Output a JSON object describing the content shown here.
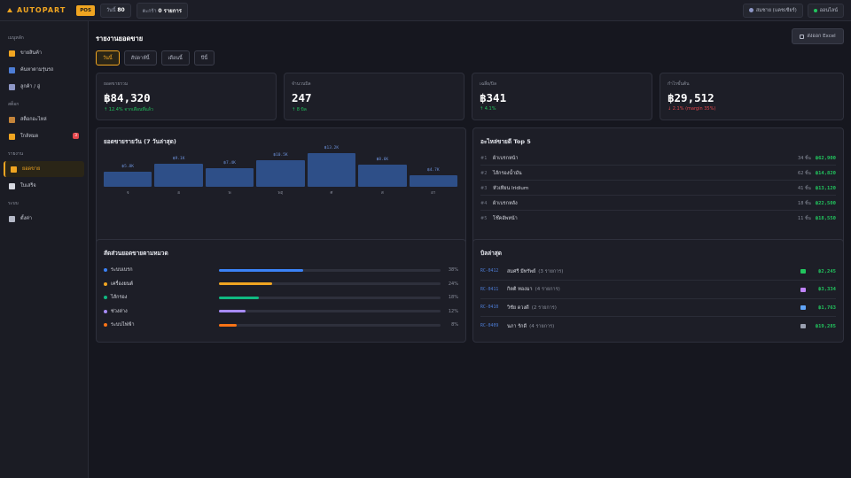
{
  "topbar": {
    "brand": "AUTOPART",
    "pos_badge": "POS",
    "date_chip_label": "วันนี้",
    "date_chip_value": "80",
    "cart_label": "ตะกร้า",
    "cart_value": "0 รายการ",
    "user_label": "สมชาย (แคชเชียร์)",
    "status_label": "ออนไลน์"
  },
  "sidebar": {
    "sections": [
      {
        "title": "เมนูหลัก",
        "items": [
          {
            "label": "ขายสินค้า",
            "icon": "cart-icon",
            "color": "#f0a521"
          },
          {
            "label": "ค้นหาตามรุ่นรถ",
            "icon": "search-icon",
            "color": "#4d7dd6"
          },
          {
            "label": "ลูกค้า / อู่",
            "icon": "users-icon",
            "color": "#8e97c6"
          }
        ]
      },
      {
        "title": "สต็อก",
        "items": [
          {
            "label": "สต็อกอะไหล่",
            "icon": "box-icon",
            "color": "#c4843a"
          },
          {
            "label": "ใกล้หมด",
            "icon": "warning-icon",
            "color": "#f0a521",
            "badge": "3"
          }
        ]
      },
      {
        "title": "รายงาน",
        "items": [
          {
            "label": "ยอดขาย",
            "icon": "chart-icon",
            "color": "#f0a521",
            "active": true
          },
          {
            "label": "ใบเสร็จ",
            "icon": "receipt-icon",
            "color": "#d6d8e0"
          }
        ]
      },
      {
        "title": "ระบบ",
        "items": [
          {
            "label": "ตั้งค่า",
            "icon": "gear-icon",
            "color": "#b4b8c6"
          }
        ]
      }
    ]
  },
  "page": {
    "title": "รายงานยอดขาย",
    "export_label": "ส่งออก Excel",
    "tabs": [
      "วันนี้",
      "สัปดาห์นี้",
      "เดือนนี้",
      "ปีนี้"
    ],
    "active_tab": 0
  },
  "kpis": [
    {
      "label": "ยอดขายรวม",
      "value": "฿84,320",
      "change": "↑ 12.4% จากเดือนที่แล้ว",
      "trend": "up"
    },
    {
      "label": "จำนวนบิล",
      "value": "247",
      "change": "↑ 8 บิล",
      "trend": "up"
    },
    {
      "label": "เฉลี่ย/บิล",
      "value": "฿341",
      "change": "↑ 4.1%",
      "trend": "up"
    },
    {
      "label": "กำไรขั้นต้น",
      "value": "฿29,512",
      "change": "↓ 2.1% (margin 35%)",
      "trend": "down"
    }
  ],
  "daily_chart": {
    "title": "ยอดขายรายวัน (7 วันล่าสุด)",
    "chart_data": {
      "type": "bar",
      "categories": [
        "จ",
        "อ",
        "พ",
        "พฤ",
        "ศ",
        "ส",
        "อา"
      ],
      "values": [
        5.8,
        9.1,
        7.4,
        10.5,
        13.2,
        8.6,
        4.7
      ],
      "value_labels": [
        "฿5.8K",
        "฿9.1K",
        "฿7.4K",
        "฿10.5K",
        "฿13.2K",
        "฿8.6K",
        "฿4.7K"
      ],
      "ylim": [
        0,
        14
      ]
    }
  },
  "top_parts": {
    "title": "อะไหล่ขายดี Top 5",
    "rows": [
      {
        "rank": "#1",
        "name": "ผ้าเบรกหน้า",
        "qty": "34 ชิ้น",
        "amount": "฿62,900"
      },
      {
        "rank": "#2",
        "name": "ไส้กรองน้ำมัน",
        "qty": "62 ชิ้น",
        "amount": "฿14,820"
      },
      {
        "rank": "#3",
        "name": "หัวเทียน Iridium",
        "qty": "41 ชิ้น",
        "amount": "฿13,120"
      },
      {
        "rank": "#4",
        "name": "ผ้าเบรกหลัง",
        "qty": "18 ชิ้น",
        "amount": "฿22,500"
      },
      {
        "rank": "#5",
        "name": "โช๊คอัพหน้า",
        "qty": "11 ชิ้น",
        "amount": "฿18,550"
      }
    ]
  },
  "categories": {
    "title": "สัดส่วนยอดขายตามหมวด",
    "rows": [
      {
        "name": "ระบบเบรก",
        "pct_label": "38%",
        "value": 38,
        "color": "#3b82f6"
      },
      {
        "name": "เครื่องยนต์",
        "pct_label": "24%",
        "value": 24,
        "color": "#f0a521"
      },
      {
        "name": "ไส้กรอง",
        "pct_label": "18%",
        "value": 18,
        "color": "#10b981"
      },
      {
        "name": "ช่วงล่าง",
        "pct_label": "12%",
        "value": 12,
        "color": "#a78bfa"
      },
      {
        "name": "ระบบไฟฟ้า",
        "pct_label": "8%",
        "value": 8,
        "color": "#f97316"
      }
    ]
  },
  "recent_bills": {
    "title": "บิลล่าสุด",
    "rows": [
      {
        "id": "RC-0412",
        "name": "สมศรี มีทรัพย์",
        "items": "(3 รายการ)",
        "amount": "฿2,245",
        "pay": "cash-icon",
        "pay_color": "#22c55e"
      },
      {
        "id": "RC-0411",
        "name": "กิตติ ทองมา",
        "items": "(4 รายการ)",
        "amount": "฿3,334",
        "pay": "phone-icon",
        "pay_color": "#c084fc"
      },
      {
        "id": "RC-0410",
        "name": "วิชัย ดวงดี",
        "items": "(2 รายการ)",
        "amount": "฿1,763",
        "pay": "card-icon",
        "pay_color": "#60a5fa"
      },
      {
        "id": "RC-0409",
        "name": "นภา รักดี",
        "items": "(4 รายการ)",
        "amount": "฿19,285",
        "pay": "phone-icon",
        "pay_color": "#9aa0b0"
      }
    ]
  }
}
